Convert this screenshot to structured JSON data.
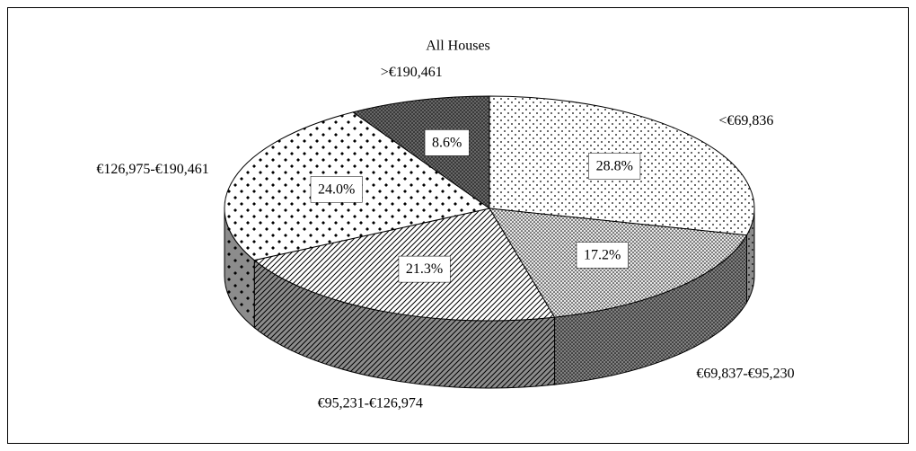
{
  "chart_data": {
    "type": "pie",
    "title": "All Houses",
    "categories": [
      "<€69,836",
      "€69,837-€95,230",
      "€95,231-€126,974",
      "€126,975-€190,461",
      ">€190,461"
    ],
    "values": [
      28.8,
      17.2,
      21.3,
      24.0,
      8.6
    ],
    "value_labels": [
      "28.8%",
      "17.2%",
      "21.3%",
      "24.0%",
      "8.6%"
    ],
    "colors": [
      "#ffffff",
      "#e6e6e6",
      "#ffffff",
      "#ffffff",
      "#3a3a3a"
    ]
  }
}
